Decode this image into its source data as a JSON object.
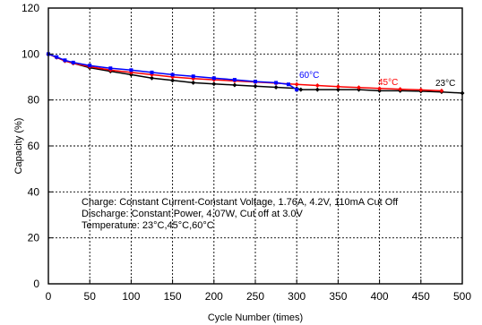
{
  "chart_data": {
    "type": "line",
    "xlabel": "Cycle Number (times)",
    "ylabel": "Capacity (%)",
    "xlim": [
      0,
      500
    ],
    "ylim": [
      0,
      120
    ],
    "xticks": [
      0,
      50,
      100,
      150,
      200,
      250,
      300,
      350,
      400,
      450,
      500
    ],
    "yticks": [
      0,
      20,
      40,
      60,
      80,
      100,
      120
    ],
    "grid": true,
    "series": [
      {
        "name": "23°C",
        "color": "#000000",
        "x": [
          0,
          10,
          20,
          30,
          50,
          75,
          100,
          125,
          150,
          175,
          200,
          225,
          250,
          275,
          300,
          305,
          325,
          350,
          375,
          400,
          425,
          450,
          475,
          500
        ],
        "values": [
          100,
          98.5,
          97,
          96,
          94,
          92.5,
          91,
          89.5,
          88.5,
          87.5,
          87,
          86.5,
          86,
          85.5,
          85,
          84.5,
          84.5,
          84.5,
          84.5,
          84,
          84,
          83.8,
          83.5,
          83
        ]
      },
      {
        "name": "45°C",
        "color": "#ff0000",
        "x": [
          0,
          10,
          20,
          30,
          50,
          75,
          100,
          125,
          150,
          175,
          200,
          225,
          250,
          275,
          300,
          325,
          350,
          375,
          400,
          425,
          450,
          475
        ],
        "values": [
          100,
          98.5,
          97,
          96,
          94.5,
          93,
          92,
          91,
          90,
          89.3,
          88.8,
          88.3,
          87.8,
          87.3,
          86.8,
          86.3,
          85.8,
          85.4,
          85,
          84.7,
          84.4,
          84
        ]
      },
      {
        "name": "60°C",
        "color": "#0000ff",
        "x": [
          0,
          10,
          20,
          30,
          50,
          75,
          100,
          125,
          150,
          175,
          200,
          225,
          250,
          275,
          290,
          300
        ],
        "values": [
          100,
          98.7,
          97.3,
          96.3,
          95,
          93.8,
          93,
          92,
          91,
          90.3,
          89.5,
          88.8,
          88,
          87.5,
          86.8,
          84.5
        ]
      }
    ],
    "series_label_text": [
      "60°C",
      "45°C",
      "23°C"
    ],
    "annotations": [
      "Charge: Constant Current-Constant Voltage, 1.76A, 4.2V, 110mA Cut Off",
      "Discharge: Constant Power, 4.07W, Cut off at 3.0V",
      "Temperature: 23°C,45°C,60°C"
    ]
  }
}
